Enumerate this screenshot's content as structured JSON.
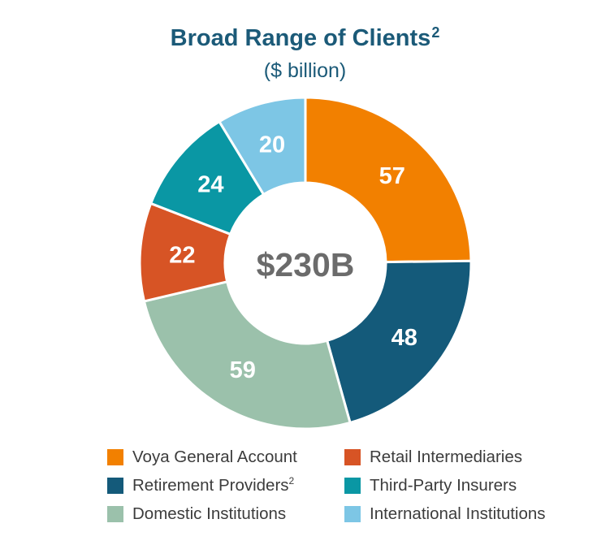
{
  "chart_data": {
    "type": "pie",
    "donut": true,
    "title": "Broad Range of Clients",
    "title_sup": "2",
    "subtitle": "($ billion)",
    "center_label": "$230B",
    "legend_position": "bottom",
    "slices": [
      {
        "label": "Voya General Account",
        "value": 57,
        "value_label": "57",
        "color": "#f28000"
      },
      {
        "label": "Retirement Providers",
        "label_sup": "2",
        "value": 48,
        "value_label": "48",
        "color": "#145a7a"
      },
      {
        "label": "Domestic Institutions",
        "value": 59,
        "value_label": "59",
        "color": "#9bc1ab"
      },
      {
        "label": "Retail Intermediaries",
        "value": 22,
        "value_label": "22",
        "color": "#d75425"
      },
      {
        "label": "Third-Party Insurers",
        "value": 24,
        "value_label": "24",
        "color": "#0a97a4"
      },
      {
        "label": "International Institutions",
        "value": 20,
        "value_label": "20",
        "color": "#7dc6e5"
      }
    ]
  }
}
